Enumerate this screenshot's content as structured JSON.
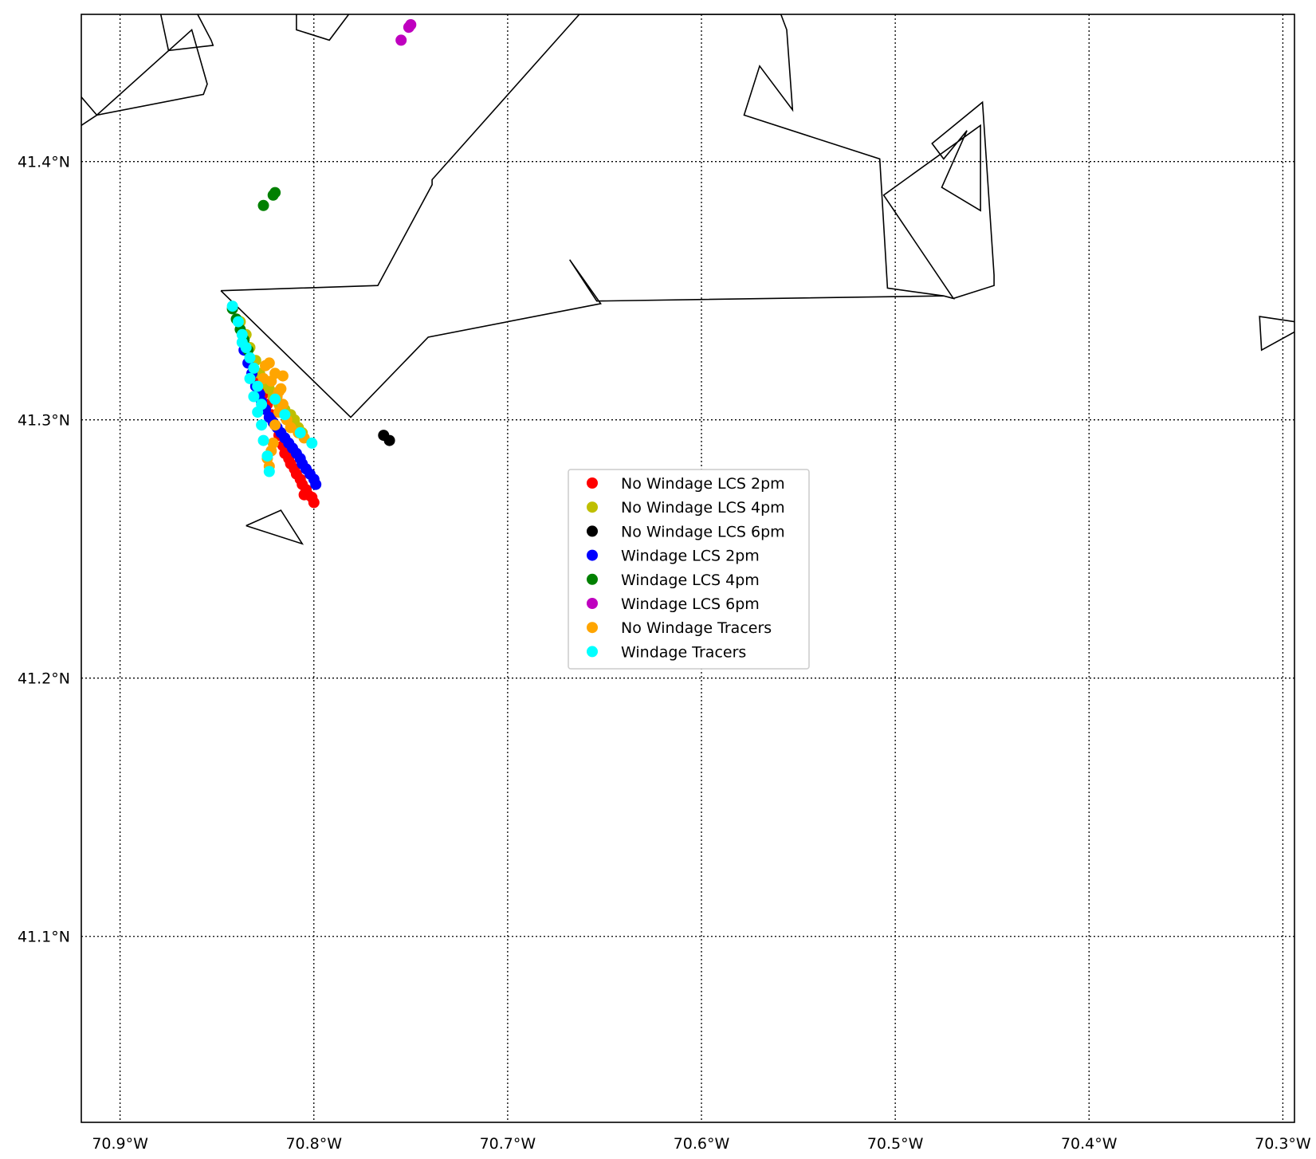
{
  "chart_data": {
    "type": "scatter",
    "xlim": [
      -70.92,
      -70.294
    ],
    "ylim": [
      41.028,
      41.457
    ],
    "x_ticks": [
      {
        "value": -70.9,
        "label": "70.9°W"
      },
      {
        "value": -70.8,
        "label": "70.8°W"
      },
      {
        "value": -70.7,
        "label": "70.7°W"
      },
      {
        "value": -70.6,
        "label": "70.6°W"
      },
      {
        "value": -70.5,
        "label": "70.5°W"
      },
      {
        "value": -70.4,
        "label": "70.4°W"
      },
      {
        "value": -70.3,
        "label": "70.3°W"
      }
    ],
    "y_ticks": [
      {
        "value": 41.1,
        "label": "41.1°N"
      },
      {
        "value": 41.2,
        "label": "41.2°N"
      },
      {
        "value": 41.3,
        "label": "41.3°N"
      },
      {
        "value": 41.4,
        "label": "41.4°N"
      }
    ],
    "grid": true,
    "legend_position": "center",
    "coastline": [
      [
        [
          -70.92,
          41.425
        ],
        [
          -70.912,
          41.418
        ],
        [
          -70.92,
          41.414
        ]
      ],
      [
        [
          -70.912,
          41.418
        ],
        [
          -70.857,
          41.426
        ],
        [
          -70.855,
          41.43
        ],
        [
          -70.863,
          41.451
        ],
        [
          -70.912,
          41.418
        ]
      ],
      [
        [
          -70.879,
          41.457
        ],
        [
          -70.875,
          41.443
        ],
        [
          -70.852,
          41.445
        ],
        [
          -70.853,
          41.447
        ],
        [
          -70.86,
          41.457
        ]
      ],
      [
        [
          -70.809,
          41.457
        ],
        [
          -70.809,
          41.451
        ],
        [
          -70.792,
          41.447
        ],
        [
          -70.782,
          41.457
        ]
      ],
      [
        [
          -70.848,
          41.35
        ],
        [
          -70.781,
          41.301
        ],
        [
          -70.741,
          41.332
        ],
        [
          -70.652,
          41.345
        ],
        [
          -70.668,
          41.362
        ],
        [
          -70.654,
          41.346
        ],
        [
          -70.475,
          41.348
        ],
        [
          -70.47,
          41.347
        ],
        [
          -70.449,
          41.352
        ],
        [
          -70.449,
          41.356
        ],
        [
          -70.455,
          41.423
        ],
        [
          -70.481,
          41.407
        ],
        [
          -70.475,
          41.401
        ],
        [
          -70.463,
          41.412
        ],
        [
          -70.476,
          41.39
        ],
        [
          -70.456,
          41.381
        ],
        [
          -70.456,
          41.414
        ],
        [
          -70.506,
          41.387
        ],
        [
          -70.47,
          41.347
        ],
        [
          -70.475,
          41.348
        ],
        [
          -70.504,
          41.351
        ],
        [
          -70.508,
          41.401
        ],
        [
          -70.578,
          41.418
        ],
        [
          -70.57,
          41.437
        ],
        [
          -70.553,
          41.42
        ],
        [
          -70.556,
          41.451
        ],
        [
          -70.559,
          41.457
        ],
        [
          -70.663,
          41.457
        ],
        [
          -70.739,
          41.393
        ],
        [
          -70.739,
          41.391
        ],
        [
          -70.767,
          41.352
        ],
        [
          -70.848,
          41.35
        ]
      ],
      [
        [
          -70.835,
          41.259
        ],
        [
          -70.817,
          41.265
        ],
        [
          -70.806,
          41.252
        ],
        [
          -70.835,
          41.259
        ]
      ],
      [
        [
          -70.294,
          41.334
        ],
        [
          -70.311,
          41.327
        ],
        [
          -70.312,
          41.34
        ],
        [
          -70.294,
          41.338
        ]
      ]
    ],
    "series": [
      {
        "name": "No Windage LCS 2pm",
        "color": "#ff0000",
        "points": [
          [
            -70.829,
            41.315
          ],
          [
            -70.826,
            41.31
          ],
          [
            -70.824,
            41.306
          ],
          [
            -70.822,
            41.302
          ],
          [
            -70.82,
            41.298
          ],
          [
            -70.818,
            41.294
          ],
          [
            -70.816,
            41.29
          ],
          [
            -70.815,
            41.287
          ],
          [
            -70.813,
            41.285
          ],
          [
            -70.812,
            41.283
          ],
          [
            -70.81,
            41.281
          ],
          [
            -70.809,
            41.279
          ],
          [
            -70.807,
            41.277
          ],
          [
            -70.806,
            41.275
          ],
          [
            -70.804,
            41.273
          ],
          [
            -70.803,
            41.271
          ],
          [
            -70.801,
            41.27
          ],
          [
            -70.8,
            41.268
          ],
          [
            -70.805,
            41.271
          ]
        ]
      },
      {
        "name": "No Windage LCS 4pm",
        "color": "#bfbf00",
        "points": [
          [
            -70.838,
            41.338
          ],
          [
            -70.835,
            41.333
          ],
          [
            -70.833,
            41.328
          ],
          [
            -70.83,
            41.323
          ],
          [
            -70.828,
            41.318
          ],
          [
            -70.825,
            41.314
          ],
          [
            -70.823,
            41.312
          ],
          [
            -70.821,
            41.309
          ],
          [
            -70.818,
            41.306
          ],
          [
            -70.815,
            41.304
          ],
          [
            -70.812,
            41.302
          ],
          [
            -70.81,
            41.3
          ],
          [
            -70.808,
            41.297
          ],
          [
            -70.806,
            41.295
          ]
        ]
      },
      {
        "name": "No Windage LCS 6pm",
        "color": "#000000",
        "points": [
          [
            -70.764,
            41.294
          ],
          [
            -70.761,
            41.292
          ]
        ]
      },
      {
        "name": "Windage LCS 2pm",
        "color": "#0000ff",
        "points": [
          [
            -70.836,
            41.327
          ],
          [
            -70.834,
            41.322
          ],
          [
            -70.832,
            41.318
          ],
          [
            -70.83,
            41.313
          ],
          [
            -70.828,
            41.31
          ],
          [
            -70.827,
            41.307
          ],
          [
            -70.825,
            41.304
          ],
          [
            -70.823,
            41.301
          ],
          [
            -70.821,
            41.299
          ],
          [
            -70.819,
            41.297
          ],
          [
            -70.817,
            41.295
          ],
          [
            -70.815,
            41.293
          ],
          [
            -70.813,
            41.291
          ],
          [
            -70.811,
            41.289
          ],
          [
            -70.809,
            41.287
          ],
          [
            -70.807,
            41.285
          ],
          [
            -70.806,
            41.283
          ],
          [
            -70.804,
            41.281
          ],
          [
            -70.802,
            41.279
          ],
          [
            -70.8,
            41.277
          ],
          [
            -70.799,
            41.275
          ]
        ]
      },
      {
        "name": "Windage LCS 4pm",
        "color": "#008000",
        "points": [
          [
            -70.82,
            41.388
          ],
          [
            -70.821,
            41.387
          ],
          [
            -70.826,
            41.383
          ],
          [
            -70.842,
            41.343
          ],
          [
            -70.84,
            41.339
          ],
          [
            -70.838,
            41.335
          ],
          [
            -70.836,
            41.331
          ],
          [
            -70.834,
            41.327
          ]
        ]
      },
      {
        "name": "Windage LCS 6pm",
        "color": "#bf00bf",
        "points": [
          [
            -70.75,
            41.453
          ],
          [
            -70.751,
            41.452
          ],
          [
            -70.755,
            41.447
          ]
        ]
      },
      {
        "name": "No Windage Tracers",
        "color": "#ffa500",
        "points": [
          [
            -70.823,
            41.322
          ],
          [
            -70.82,
            41.318
          ],
          [
            -70.822,
            41.315
          ],
          [
            -70.817,
            41.312
          ],
          [
            -70.819,
            41.309
          ],
          [
            -70.816,
            41.306
          ],
          [
            -70.818,
            41.303
          ],
          [
            -70.814,
            41.3
          ],
          [
            -70.82,
            41.298
          ],
          [
            -70.812,
            41.297
          ],
          [
            -70.808,
            41.295
          ],
          [
            -70.805,
            41.293
          ],
          [
            -70.821,
            41.291
          ],
          [
            -70.822,
            41.288
          ],
          [
            -70.824,
            41.285
          ],
          [
            -70.823,
            41.282
          ],
          [
            -70.826,
            41.316
          ],
          [
            -70.816,
            41.317
          ],
          [
            -70.818,
            41.311
          ],
          [
            -70.825,
            41.321
          ]
        ]
      },
      {
        "name": "Windage Tracers",
        "color": "#00ffff",
        "points": [
          [
            -70.842,
            41.344
          ],
          [
            -70.839,
            41.338
          ],
          [
            -70.837,
            41.333
          ],
          [
            -70.835,
            41.328
          ],
          [
            -70.833,
            41.324
          ],
          [
            -70.831,
            41.32
          ],
          [
            -70.833,
            41.316
          ],
          [
            -70.829,
            41.313
          ],
          [
            -70.831,
            41.309
          ],
          [
            -70.827,
            41.306
          ],
          [
            -70.829,
            41.303
          ],
          [
            -70.827,
            41.298
          ],
          [
            -70.826,
            41.292
          ],
          [
            -70.824,
            41.286
          ],
          [
            -70.823,
            41.28
          ],
          [
            -70.82,
            41.308
          ],
          [
            -70.815,
            41.302
          ],
          [
            -70.807,
            41.295
          ],
          [
            -70.801,
            41.291
          ],
          [
            -70.837,
            41.33
          ]
        ]
      }
    ]
  }
}
